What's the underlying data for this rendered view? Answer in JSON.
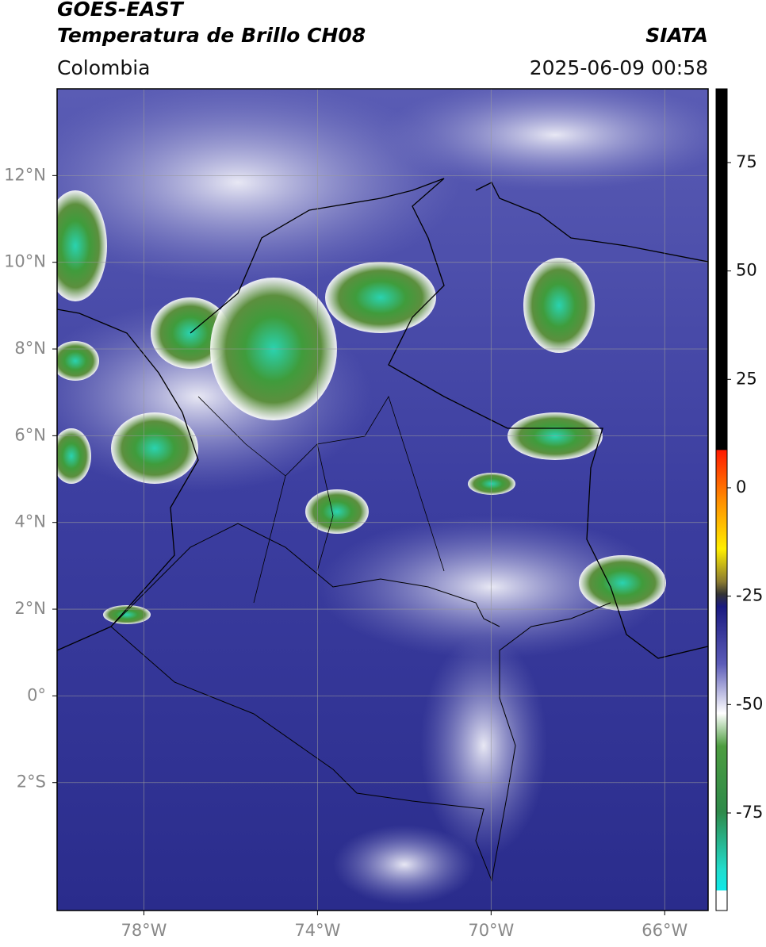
{
  "header": {
    "title": "GOES-EAST",
    "subtitle": "Temperatura de Brillo CH08",
    "brand": "SIATA",
    "region": "Colombia",
    "timestamp": "2025-06-09 00:58"
  },
  "map": {
    "xlim": [
      -80,
      -65
    ],
    "ylim": [
      -4.95,
      14
    ],
    "xticks": [
      {
        "value": -78,
        "label": "78°W"
      },
      {
        "value": -74,
        "label": "74°W"
      },
      {
        "value": -70,
        "label": "70°W"
      },
      {
        "value": -66,
        "label": "66°W"
      }
    ],
    "yticks": [
      {
        "value": 12,
        "label": "12°N"
      },
      {
        "value": 10,
        "label": "10°N"
      },
      {
        "value": 8,
        "label": "8°N"
      },
      {
        "value": 6,
        "label": "6°N"
      },
      {
        "value": 4,
        "label": "4°N"
      },
      {
        "value": 2,
        "label": "2°N"
      },
      {
        "value": 0,
        "label": "0°"
      },
      {
        "value": -2,
        "label": "2°S"
      }
    ],
    "grid": true
  },
  "colorbar": {
    "lim": [
      -97.5,
      92
    ],
    "ticks": [
      75,
      50,
      25,
      0,
      -25,
      -50,
      -75
    ]
  }
}
